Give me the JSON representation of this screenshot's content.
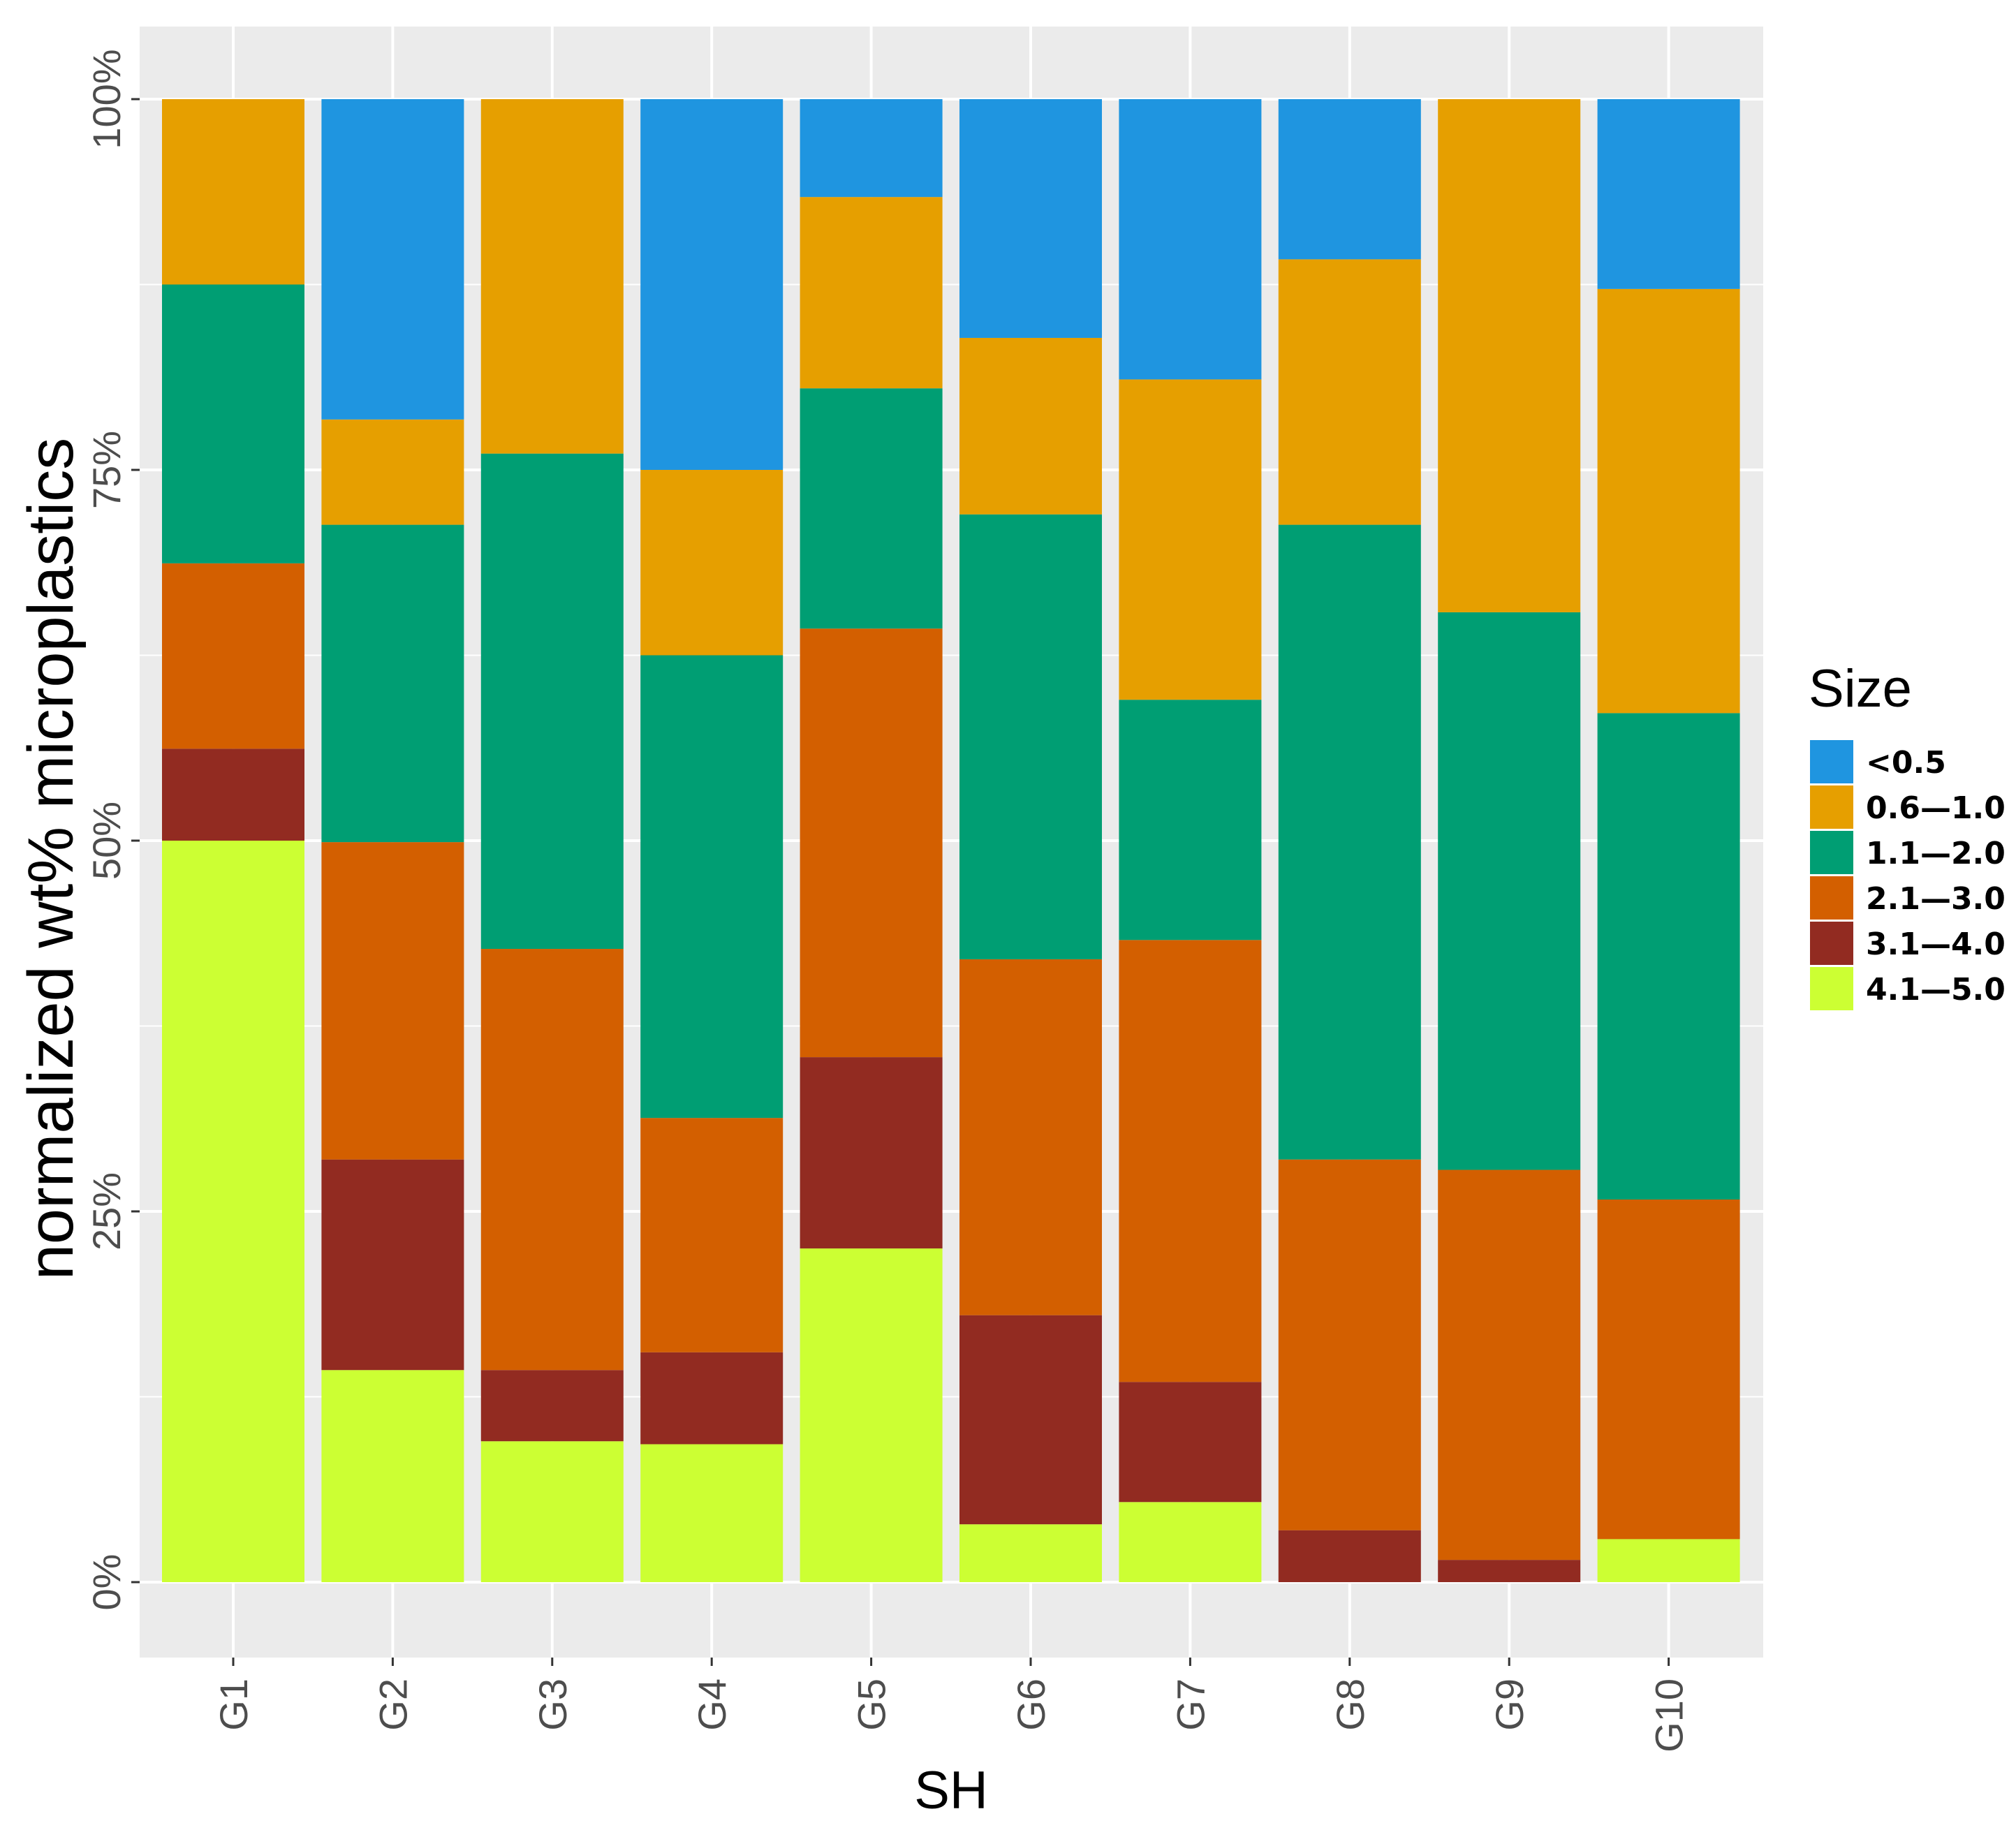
{
  "chart_data": {
    "type": "bar",
    "stacked": true,
    "normalized": true,
    "title": "",
    "xlabel": "SH",
    "ylabel": "normalized wt% microplastics",
    "ylim": [
      0,
      100
    ],
    "y_ticks": [
      "0%",
      "25%",
      "50%",
      "75%",
      "100%"
    ],
    "y_tick_values": [
      0,
      25,
      50,
      75,
      100
    ],
    "categories": [
      "G1",
      "G2",
      "G3",
      "G4",
      "G5",
      "G6",
      "G7",
      "G8",
      "G9",
      "G10"
    ],
    "legend": {
      "title": "Size",
      "position": "right"
    },
    "series": [
      {
        "name": "4.1—5.0",
        "color": "#CCFF33",
        "values": [
          50.0,
          14.3,
          9.5,
          9.3,
          22.5,
          3.9,
          5.4,
          0.0,
          0.0,
          2.9
        ]
      },
      {
        "name": "3.1—4.0",
        "color": "#922B21",
        "values": [
          6.2,
          14.2,
          4.8,
          6.2,
          12.9,
          14.1,
          8.1,
          3.5,
          1.5,
          0.0
        ]
      },
      {
        "name": "2.1—3.0",
        "color": "#D35F00",
        "values": [
          12.5,
          21.4,
          28.4,
          15.8,
          28.9,
          24.0,
          29.8,
          25.0,
          26.3,
          22.9
        ]
      },
      {
        "name": "1.1—2.0",
        "color": "#009E73",
        "values": [
          18.8,
          21.4,
          33.4,
          31.2,
          16.2,
          30.0,
          16.2,
          42.8,
          37.6,
          32.8
        ]
      },
      {
        "name": "0.6—1.0",
        "color": "#E69F00",
        "values": [
          12.5,
          7.1,
          23.9,
          12.5,
          12.9,
          11.9,
          21.6,
          17.9,
          34.6,
          28.6
        ]
      },
      {
        "name": "<0.5",
        "color": "#1F95E0",
        "values": [
          0.0,
          21.6,
          0.0,
          25.0,
          6.6,
          16.1,
          18.9,
          10.8,
          0.0,
          12.8
        ]
      }
    ]
  },
  "colors": {
    "panel_background": "#EBEBEB",
    "grid": "#FFFFFF"
  }
}
